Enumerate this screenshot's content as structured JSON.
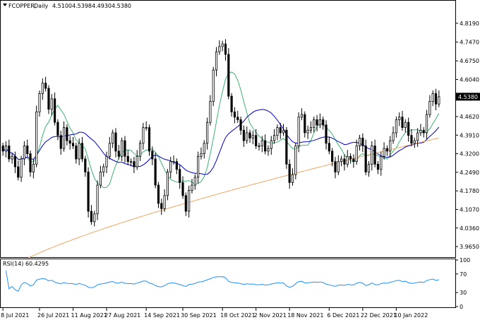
{
  "chart_data": {
    "type": "candlestick",
    "header": {
      "symbol": "FCOPPER,",
      "timeframe": "Daily",
      "ohlc": [
        "4.5100",
        "4.5398",
        "4.4930",
        "4.5380"
      ]
    },
    "last_price_label": "4.5380",
    "price_axis": {
      "ylim": [
        3.93,
        4.87
      ],
      "ticks": [
        "4.8190",
        "4.7470",
        "4.6750",
        "4.6040",
        "4.5380",
        "4.4620",
        "4.3910",
        "4.3200",
        "4.2490",
        "4.1780",
        "4.1070",
        "4.0360",
        "3.9650"
      ]
    },
    "x_axis": {
      "labels": [
        "8 Jul 2021",
        "26 Jul 2021",
        "11 Aug 2021",
        "27 Aug 2021",
        "14 Sep 2021",
        "30 Sep 2021",
        "18 Oct 2021",
        "2 Nov 2021",
        "18 Nov 2021",
        "6 Dec 2021",
        "22 Dec 2021",
        "10 Jan 2022"
      ],
      "label_index": [
        0,
        12,
        23,
        34,
        47,
        59,
        72,
        83,
        94,
        107,
        118,
        129
      ]
    },
    "closes": [
      4.33,
      4.35,
      4.3,
      4.31,
      4.27,
      4.23,
      4.3,
      4.35,
      4.32,
      4.25,
      4.28,
      4.48,
      4.55,
      4.59,
      4.57,
      4.49,
      4.53,
      4.44,
      4.39,
      4.34,
      4.42,
      4.37,
      4.36,
      4.35,
      4.3,
      4.36,
      4.3,
      4.25,
      4.1,
      4.06,
      4.09,
      4.2,
      4.25,
      4.27,
      4.31,
      4.36,
      4.4,
      4.33,
      4.31,
      4.37,
      4.31,
      4.29,
      4.29,
      4.27,
      4.31,
      4.36,
      4.42,
      4.42,
      4.33,
      4.3,
      4.2,
      4.13,
      4.11,
      4.16,
      4.25,
      4.29,
      4.29,
      4.26,
      4.21,
      4.16,
      4.1,
      4.18,
      4.2,
      4.23,
      4.31,
      4.32,
      4.36,
      4.44,
      4.52,
      4.64,
      4.71,
      4.73,
      4.74,
      4.7,
      4.54,
      4.48,
      4.46,
      4.45,
      4.41,
      4.37,
      4.4,
      4.38,
      4.39,
      4.35,
      4.35,
      4.37,
      4.33,
      4.34,
      4.37,
      4.39,
      4.42,
      4.4,
      4.41,
      4.28,
      4.21,
      4.24,
      4.35,
      4.46,
      4.47,
      4.4,
      4.41,
      4.42,
      4.45,
      4.43,
      4.45,
      4.43,
      4.36,
      4.33,
      4.29,
      4.25,
      4.29,
      4.3,
      4.28,
      4.31,
      4.3,
      4.29,
      4.35,
      4.38,
      4.35,
      4.25,
      4.28,
      4.35,
      4.28,
      4.26,
      4.31,
      4.34,
      4.33,
      4.37,
      4.4,
      4.45,
      4.46,
      4.42,
      4.44,
      4.39,
      4.36,
      4.37,
      4.4,
      4.41,
      4.4,
      4.47,
      4.52,
      4.55,
      4.51,
      4.538
    ],
    "rsi_axis": {
      "ylim": [
        0,
        100
      ],
      "ticks": [
        "100",
        "70",
        "30",
        "0"
      ]
    },
    "rsi_label": "RSI(14) 60.4295",
    "colors": {
      "candles": "#000000",
      "ma_fast": "#3cb371",
      "ma_mid": "#0000c8",
      "ma_slow": "#f4a460",
      "rsi": "#1e90ff"
    }
  }
}
